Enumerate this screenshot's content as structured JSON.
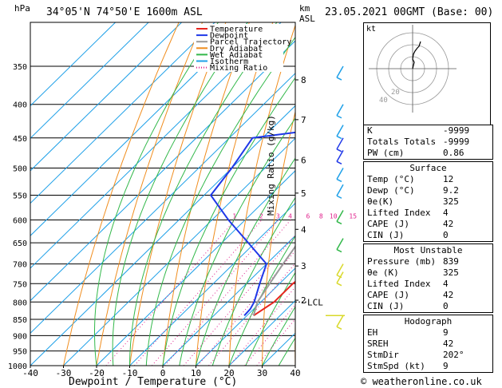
{
  "header": {
    "hpa_label": "hPa",
    "location": "34°05'N  74°50'E  1600m  ASL",
    "km_label": "km",
    "asl_label": "ASL",
    "valid_time": "23.05.2021  00GMT  (Base: 00)"
  },
  "chart_data": {
    "type": "skew-t",
    "xlabel": "Dewpoint / Temperature (°C)",
    "ylabel_left": "hPa",
    "ylabel_right": "Mixing Ratio (g/kg)",
    "pressure_levels": [
      300,
      350,
      400,
      450,
      500,
      550,
      600,
      650,
      700,
      750,
      800,
      850,
      900,
      950,
      1000
    ],
    "pressure_labels": [
      "",
      "350",
      "400",
      "450",
      "500",
      "550",
      "600",
      "650",
      "700",
      "750",
      "800",
      "850",
      "900",
      "950",
      "1000"
    ],
    "x_ticks": [
      -40,
      -30,
      -20,
      -10,
      0,
      10,
      20,
      30,
      40
    ],
    "x_tick_labels": [
      "-40",
      "-30",
      "-20",
      "-10",
      "0",
      "10",
      "20",
      "30",
      "40"
    ],
    "xlim": [
      -40,
      40
    ],
    "ylim_hpa": [
      300,
      1000
    ],
    "km_ticks": [
      {
        "label": "8",
        "p": 367
      },
      {
        "label": "7",
        "p": 422
      },
      {
        "label": "6",
        "p": 486
      },
      {
        "label": "5",
        "p": 546
      },
      {
        "label": "4",
        "p": 620
      },
      {
        "label": "3",
        "p": 705
      },
      {
        "label": "2",
        "p": 795
      }
    ],
    "lcl": {
      "label": "LCL",
      "p": 800
    },
    "mixing_ratio_values": [
      1,
      2,
      3,
      4,
      6,
      8,
      10,
      15,
      20,
      25
    ],
    "mixing_ratio_labels": [
      "1",
      "2",
      "3",
      "4",
      "6",
      "8",
      "10",
      "15",
      "20",
      "25"
    ],
    "legend": [
      {
        "name": "Temperature",
        "color": "#e8241e",
        "style": "solid"
      },
      {
        "name": "Dewpoint",
        "color": "#1f38e8",
        "style": "solid"
      },
      {
        "name": "Parcel Trajectory",
        "color": "#9a9a9a",
        "style": "solid"
      },
      {
        "name": "Dry Adiabat",
        "color": "#f08d1e",
        "style": "solid"
      },
      {
        "name": "Wet Adiabat",
        "color": "#32b84a",
        "style": "solid"
      },
      {
        "name": "Isotherm",
        "color": "#1ea0e8",
        "style": "solid"
      },
      {
        "name": "Mixing Ratio",
        "color": "#e0208c",
        "style": "dotted"
      }
    ],
    "series": [
      {
        "name": "Temperature",
        "color": "#e8241e",
        "points": [
          {
            "p": 839,
            "t": 12
          },
          {
            "p": 800,
            "t": 14
          },
          {
            "p": 750,
            "t": 14
          },
          {
            "p": 700,
            "t": 15.5
          },
          {
            "p": 650,
            "t": 14
          },
          {
            "p": 600,
            "t": 13
          },
          {
            "p": 550,
            "t": 10
          },
          {
            "p": 500,
            "t": 8
          },
          {
            "p": 470,
            "t": 6
          },
          {
            "p": 450,
            "t": 3
          },
          {
            "p": 425,
            "t": 3
          },
          {
            "p": 400,
            "t": 3.5
          },
          {
            "p": 370,
            "t": 3
          },
          {
            "p": 350,
            "t": 3
          }
        ]
      },
      {
        "name": "Dewpoint",
        "color": "#1f38e8",
        "points": [
          {
            "p": 839,
            "t": 9.2
          },
          {
            "p": 820,
            "t": 9
          },
          {
            "p": 800,
            "t": 8
          },
          {
            "p": 750,
            "t": 4
          },
          {
            "p": 700,
            "t": 0
          },
          {
            "p": 650,
            "t": -12
          },
          {
            "p": 600,
            "t": -25
          },
          {
            "p": 550,
            "t": -38
          },
          {
            "p": 500,
            "t": -40
          },
          {
            "p": 450,
            "t": -43
          },
          {
            "p": 440,
            "t": -30
          },
          {
            "p": 430,
            "t": -15
          },
          {
            "p": 410,
            "t": -20
          },
          {
            "p": 400,
            "t": -18
          },
          {
            "p": 370,
            "t": -20
          },
          {
            "p": 360,
            "t": -30
          }
        ]
      },
      {
        "name": "Parcel Trajectory",
        "color": "#9a9a9a",
        "points": [
          {
            "p": 839,
            "t": 12
          },
          {
            "p": 800,
            "t": 9
          },
          {
            "p": 750,
            "t": 7
          },
          {
            "p": 700,
            "t": 5
          },
          {
            "p": 650,
            "t": 3
          },
          {
            "p": 600,
            "t": 0
          },
          {
            "p": 550,
            "t": -3
          },
          {
            "p": 500,
            "t": -7
          },
          {
            "p": 450,
            "t": -12
          },
          {
            "p": 400,
            "t": -17
          },
          {
            "p": 350,
            "t": -24
          },
          {
            "p": 300,
            "t": -32
          }
        ]
      }
    ]
  },
  "wind_profile": {
    "barbs": [
      {
        "p": 350,
        "color": "#1ea0e8"
      },
      {
        "p": 400,
        "color": "#1ea0e8"
      },
      {
        "p": 430,
        "color": "#1ea0e8"
      },
      {
        "p": 450,
        "color": "#1f38e8"
      },
      {
        "p": 470,
        "color": "#1f38e8"
      },
      {
        "p": 500,
        "color": "#1ea0e8"
      },
      {
        "p": 530,
        "color": "#1ea0e8"
      },
      {
        "p": 580,
        "color": "#32b84a"
      },
      {
        "p": 640,
        "color": "#32b84a"
      },
      {
        "p": 700,
        "color": "#d9d92a"
      },
      {
        "p": 720,
        "color": "#d9d92a"
      },
      {
        "p": 839,
        "color": "#d9d92a"
      }
    ]
  },
  "hodograph": {
    "label": "kt",
    "ring_labels": [
      "20",
      "40"
    ],
    "points": [
      [
        0,
        0
      ],
      [
        1,
        4
      ],
      [
        2,
        8
      ],
      [
        0,
        12
      ],
      [
        1,
        18
      ],
      [
        3,
        22
      ],
      [
        6,
        26
      ],
      [
        8,
        28
      ],
      [
        10,
        34
      ]
    ]
  },
  "indices": [
    {
      "label": "K",
      "value": "-9999"
    },
    {
      "label": "Totals Totals",
      "value": "-9999"
    },
    {
      "label": "PW (cm)",
      "value": "0.86"
    }
  ],
  "surface": {
    "title": "Surface",
    "rows": [
      {
        "label": "Temp (°C)",
        "value": "12"
      },
      {
        "label": "Dewp (°C)",
        "value": "9.2"
      },
      {
        "label": "θe(K)",
        "value": "325"
      },
      {
        "label": "Lifted Index",
        "value": "4"
      },
      {
        "label": "CAPE (J)",
        "value": "42"
      },
      {
        "label": "CIN (J)",
        "value": "0"
      }
    ]
  },
  "most_unstable": {
    "title": "Most Unstable",
    "rows": [
      {
        "label": "Pressure (mb)",
        "value": "839"
      },
      {
        "label": "θe (K)",
        "value": "325"
      },
      {
        "label": "Lifted Index",
        "value": "4"
      },
      {
        "label": "CAPE (J)",
        "value": "42"
      },
      {
        "label": "CIN (J)",
        "value": "0"
      }
    ]
  },
  "hodograph_table": {
    "title": "Hodograph",
    "rows": [
      {
        "label": "EH",
        "value": "9"
      },
      {
        "label": "SREH",
        "value": "42"
      },
      {
        "label": "StmDir",
        "value": "202°"
      },
      {
        "label": "StmSpd (kt)",
        "value": "9"
      }
    ]
  },
  "footer": {
    "copyright": "© weatheronline.co.uk"
  }
}
